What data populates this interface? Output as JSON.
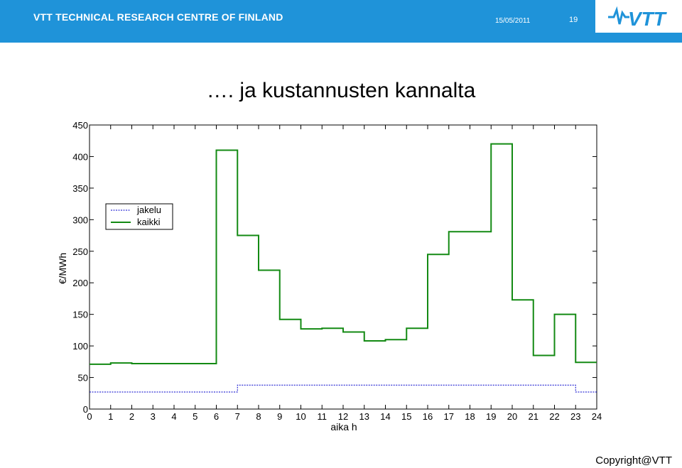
{
  "header": {
    "organization": "VTT TECHNICAL RESEARCH CENTRE OF FINLAND",
    "date": "15/05/2011",
    "page_number": "19",
    "logo_text": "VTT",
    "background_color": "#1f93d9"
  },
  "slide": {
    "title": "…. ja kustannusten kannalta"
  },
  "footer": {
    "copyright": "Copyright@VTT"
  },
  "chart_data": {
    "type": "line",
    "title": "",
    "xlabel": "aika h",
    "ylabel": "€/MWh",
    "xlim": [
      0,
      24
    ],
    "ylim": [
      0,
      450
    ],
    "x_ticks": [
      "0",
      "1",
      "2",
      "3",
      "4",
      "5",
      "6",
      "7",
      "8",
      "9",
      "10",
      "11",
      "12",
      "13",
      "14",
      "15",
      "16",
      "17",
      "18",
      "19",
      "20",
      "21",
      "22",
      "23",
      "24"
    ],
    "y_ticks": [
      "0",
      "50",
      "100",
      "150",
      "200",
      "250",
      "300",
      "350",
      "400",
      "450"
    ],
    "grid": false,
    "legend_position": "upper-left",
    "series": [
      {
        "name": "jakelu",
        "style": "dashed",
        "color": "#0000cc",
        "values": [
          27,
          27,
          27,
          27,
          27,
          27,
          27,
          38,
          38,
          38,
          38,
          38,
          38,
          38,
          38,
          38,
          38,
          38,
          38,
          38,
          38,
          38,
          38,
          27
        ]
      },
      {
        "name": "kaikki",
        "style": "solid",
        "color": "#138a13",
        "values": [
          71,
          73,
          72,
          72,
          72,
          72,
          410,
          275,
          220,
          142,
          127,
          128,
          122,
          108,
          110,
          128,
          245,
          281,
          281,
          420,
          173,
          85,
          150,
          74
        ]
      }
    ]
  }
}
